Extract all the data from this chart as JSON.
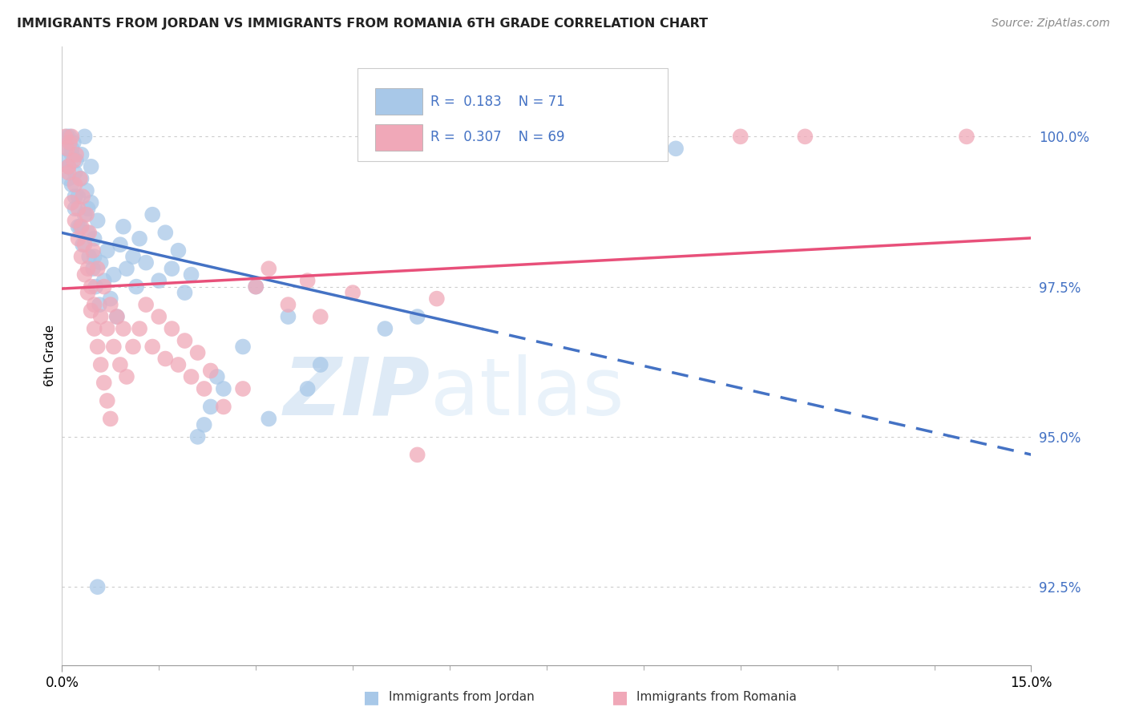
{
  "title": "IMMIGRANTS FROM JORDAN VS IMMIGRANTS FROM ROMANIA 6TH GRADE CORRELATION CHART",
  "source_text": "Source: ZipAtlas.com",
  "ylabel": "6th Grade",
  "x_min": 0.0,
  "x_max": 15.0,
  "y_min": 91.2,
  "y_max": 101.5,
  "x_ticks": [
    0.0,
    15.0
  ],
  "x_tick_labels": [
    "0.0%",
    "15.0%"
  ],
  "y_ticks": [
    92.5,
    95.0,
    97.5,
    100.0
  ],
  "y_tick_labels": [
    "92.5%",
    "95.0%",
    "97.5%",
    "100.0%"
  ],
  "background_color": "#ffffff",
  "grid_color": "#cccccc",
  "jordan_color": "#a8c8e8",
  "romania_color": "#f0a8b8",
  "jordan_line_color": "#4472c4",
  "romania_line_color": "#e8507a",
  "jordan_R": 0.183,
  "jordan_N": 71,
  "romania_R": 0.307,
  "romania_N": 69,
  "watermark_zip": "ZIP",
  "watermark_atlas": "atlas",
  "legend_jordan": "Immigrants from Jordan",
  "legend_romania": "Immigrants from Romania"
}
